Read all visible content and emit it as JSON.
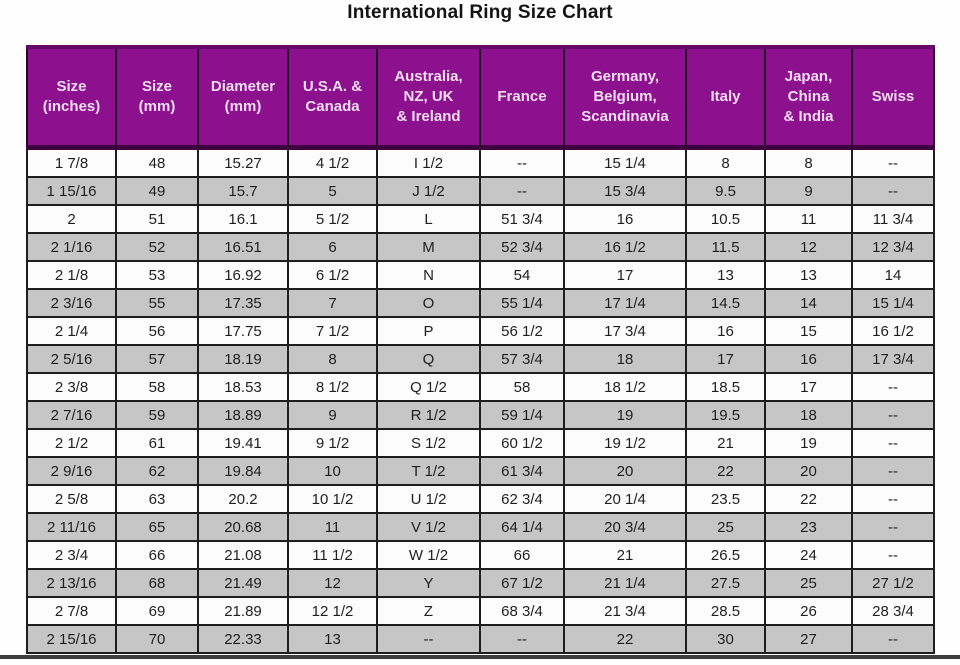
{
  "page": {
    "title": "International Ring Size Chart"
  },
  "colors": {
    "header_bg": "#8d118f",
    "header_text": "#f2ddf2",
    "row_bg": "#fcfcfc",
    "row_alt_bg": "#c6c6c6",
    "border": "#1e1e1e",
    "title_text": "#141414"
  },
  "chart_data": {
    "type": "table",
    "title": "International Ring Size Chart",
    "columns": [
      "Size\n(inches)",
      "Size\n(mm)",
      "Diameter\n(mm)",
      "U.S.A. &\nCanada",
      "Australia,\nNZ, UK\n& Ireland",
      "France",
      "Germany,\nBelgium,\nScandinavia",
      "Italy",
      "Japan,\nChina\n& India",
      "Swiss"
    ],
    "rows": [
      [
        "1 7/8",
        "48",
        "15.27",
        "4 1/2",
        "I 1/2",
        "--",
        "15 1/4",
        "8",
        "8",
        "--"
      ],
      [
        "1 15/16",
        "49",
        "15.7",
        "5",
        "J 1/2",
        "--",
        "15 3/4",
        "9.5",
        "9",
        "--"
      ],
      [
        "2",
        "51",
        "16.1",
        "5 1/2",
        "L",
        "51 3/4",
        "16",
        "10.5",
        "11",
        "11 3/4"
      ],
      [
        "2 1/16",
        "52",
        "16.51",
        "6",
        "M",
        "52 3/4",
        "16 1/2",
        "11.5",
        "12",
        "12 3/4"
      ],
      [
        "2 1/8",
        "53",
        "16.92",
        "6 1/2",
        "N",
        "54",
        "17",
        "13",
        "13",
        "14"
      ],
      [
        "2 3/16",
        "55",
        "17.35",
        "7",
        "O",
        "55 1/4",
        "17 1/4",
        "14.5",
        "14",
        "15 1/4"
      ],
      [
        "2 1/4",
        "56",
        "17.75",
        "7 1/2",
        "P",
        "56 1/2",
        "17 3/4",
        "16",
        "15",
        "16 1/2"
      ],
      [
        "2 5/16",
        "57",
        "18.19",
        "8",
        "Q",
        "57 3/4",
        "18",
        "17",
        "16",
        "17 3/4"
      ],
      [
        "2 3/8",
        "58",
        "18.53",
        "8 1/2",
        "Q 1/2",
        "58",
        "18 1/2",
        "18.5",
        "17",
        "--"
      ],
      [
        "2 7/16",
        "59",
        "18.89",
        "9",
        "R 1/2",
        "59 1/4",
        "19",
        "19.5",
        "18",
        "--"
      ],
      [
        "2 1/2",
        "61",
        "19.41",
        "9 1/2",
        "S 1/2",
        "60 1/2",
        "19 1/2",
        "21",
        "19",
        "--"
      ],
      [
        "2 9/16",
        "62",
        "19.84",
        "10",
        "T 1/2",
        "61 3/4",
        "20",
        "22",
        "20",
        "--"
      ],
      [
        "2 5/8",
        "63",
        "20.2",
        "10 1/2",
        "U 1/2",
        "62 3/4",
        "20 1/4",
        "23.5",
        "22",
        "--"
      ],
      [
        "2 11/16",
        "65",
        "20.68",
        "11",
        "V 1/2",
        "64 1/4",
        "20 3/4",
        "25",
        "23",
        "--"
      ],
      [
        "2 3/4",
        "66",
        "21.08",
        "11 1/2",
        "W 1/2",
        "66",
        "21",
        "26.5",
        "24",
        "--"
      ],
      [
        "2 13/16",
        "68",
        "21.49",
        "12",
        "Y",
        "67 1/2",
        "21 1/4",
        "27.5",
        "25",
        "27 1/2"
      ],
      [
        "2 7/8",
        "69",
        "21.89",
        "12 1/2",
        "Z",
        "68 3/4",
        "21 3/4",
        "28.5",
        "26",
        "28 3/4"
      ],
      [
        "2 15/16",
        "70",
        "22.33",
        "13",
        "--",
        "--",
        "22",
        "30",
        "27",
        "--"
      ]
    ]
  }
}
